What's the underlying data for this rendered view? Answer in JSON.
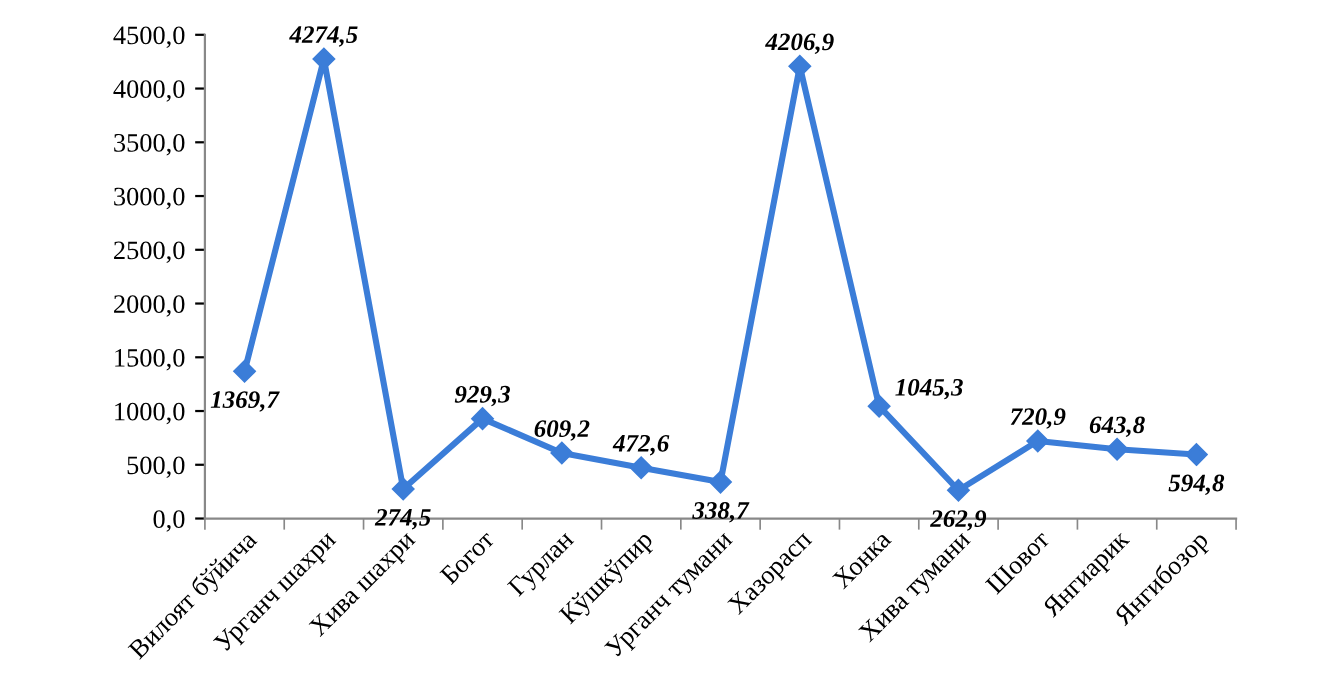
{
  "chart_data": {
    "type": "line",
    "categories": [
      "Вилоят бўйича",
      "Урганч шахри",
      "Хива шахри",
      "Богот",
      "Гурлан",
      "Кўшкўпир",
      "Урганч тумани",
      "Хазорасп",
      "Хонка",
      "Хива тумани",
      "Шовот",
      "Янгиарик",
      "Янгибозор"
    ],
    "series": [
      {
        "color": "#3b7dd8",
        "values": [
          1369.7,
          4274.5,
          274.5,
          929.3,
          609.2,
          472.6,
          338.7,
          4206.9,
          1045.3,
          262.9,
          720.9,
          643.8,
          594.8
        ]
      }
    ],
    "value_labels": [
      "1369,7",
      "4274,5",
      "274,5",
      "929,3",
      "609,2",
      "472,6",
      "338,7",
      "4206,9",
      "1045,3",
      "262,9",
      "720,9",
      "643,8",
      "594,8"
    ],
    "ylim": [
      0,
      4500
    ],
    "yticks": [
      {
        "value": 0,
        "label": "0,0"
      },
      {
        "value": 500,
        "label": "500,0"
      },
      {
        "value": 1000,
        "label": "1000,0"
      },
      {
        "value": 1500,
        "label": "1500,0"
      },
      {
        "value": 2000,
        "label": "2000,0"
      },
      {
        "value": 2500,
        "label": "2500,0"
      },
      {
        "value": 3000,
        "label": "3000,0"
      },
      {
        "value": 3500,
        "label": "3500,0"
      },
      {
        "value": 4000,
        "label": "4000,0"
      },
      {
        "value": 4500,
        "label": "4500,0"
      }
    ],
    "marker": "diamond",
    "line_style": "solid",
    "grid": false,
    "legend": false
  }
}
